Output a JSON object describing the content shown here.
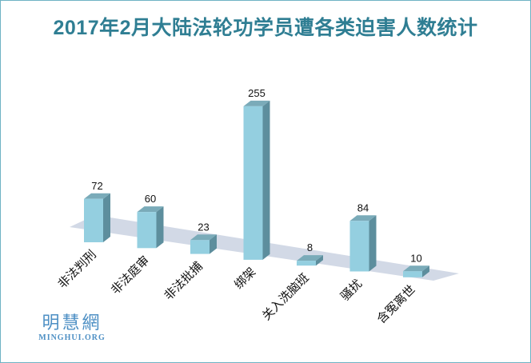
{
  "chart_data": {
    "type": "bar",
    "title": "2017年2月大陆法轮功学员遭各类迫害人数统计",
    "categories": [
      "非法判刑",
      "非法庭审",
      "非法批捕",
      "绑架",
      "关入洗脑班",
      "骚扰",
      "含冤离世"
    ],
    "values": [
      72,
      60,
      23,
      255,
      8,
      84,
      10
    ],
    "ylim": [
      0,
      255
    ],
    "grid": false,
    "legend": "none",
    "colors": {
      "bar_front": "#94cfe0",
      "bar_side": "#5d8e9d",
      "bar_top": "#7aabb9",
      "floor": "#d2d9e6",
      "title": "#2f7e93"
    }
  },
  "watermark": {
    "logo_text": "明慧網",
    "domain": "MINGHUI.ORG"
  }
}
